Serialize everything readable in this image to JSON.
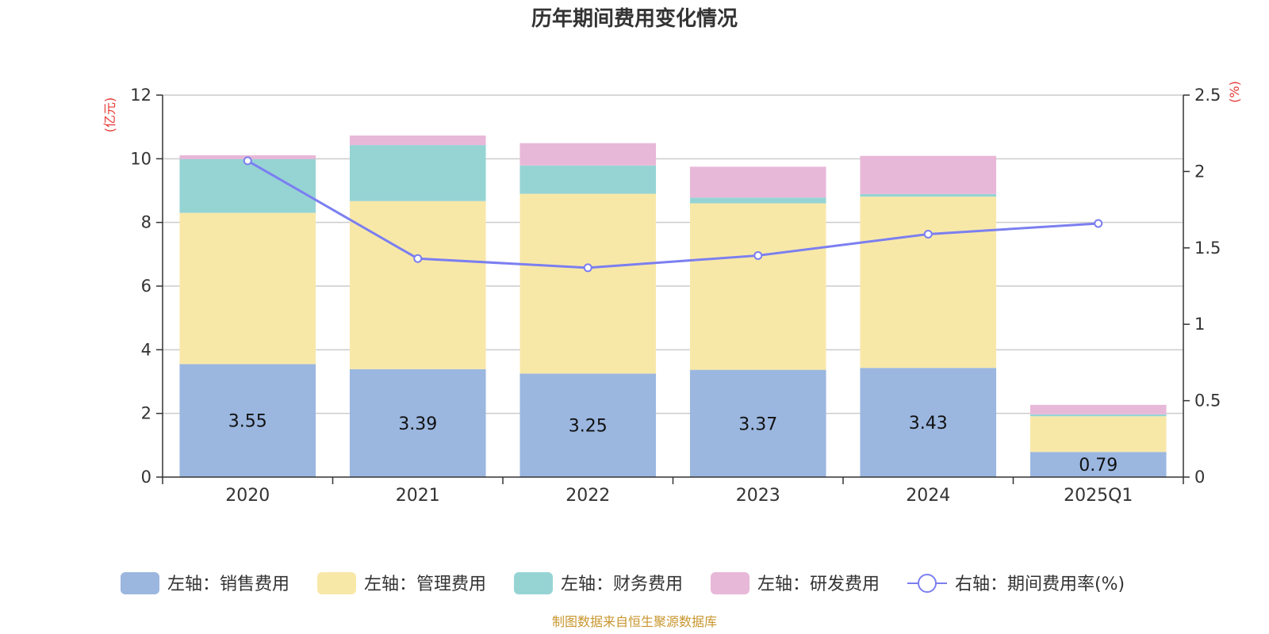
{
  "chart_data": {
    "type": "bar",
    "title": "历年期间费用变化情况",
    "categories": [
      "2020",
      "2021",
      "2022",
      "2023",
      "2024",
      "2025Q1"
    ],
    "left_axis": {
      "unit_label": "(亿元)",
      "ylim": [
        0,
        12
      ],
      "ticks": [
        "0",
        "2",
        "4",
        "6",
        "8",
        "10",
        "12"
      ]
    },
    "right_axis": {
      "unit_label": "(%)",
      "ylim": [
        0,
        2.5
      ],
      "ticks": [
        "0",
        "0.5",
        "1",
        "1.5",
        "2",
        "2.5"
      ]
    },
    "series": [
      {
        "name": "左轴：销售费用",
        "kind": "bar",
        "axis": "left",
        "color": "#9bb7e0",
        "values": [
          3.55,
          3.39,
          3.25,
          3.37,
          3.43,
          0.79
        ],
        "labels": [
          "3.55",
          "3.39",
          "3.25",
          "3.37",
          "3.43",
          "0.79"
        ]
      },
      {
        "name": "左轴：管理费用",
        "kind": "bar",
        "axis": "left",
        "color": "#f8e8a8",
        "values": [
          4.75,
          5.28,
          5.65,
          5.23,
          5.38,
          1.12
        ]
      },
      {
        "name": "左轴：财务费用",
        "kind": "bar",
        "axis": "left",
        "color": "#96d4d4",
        "values": [
          1.69,
          1.76,
          0.89,
          0.18,
          0.08,
          0.06
        ]
      },
      {
        "name": "左轴：研发费用",
        "kind": "bar",
        "axis": "left",
        "color": "#e8b8d8",
        "values": [
          0.12,
          0.3,
          0.7,
          0.97,
          1.2,
          0.3
        ]
      },
      {
        "name": "右轴：期间费用率(%)",
        "kind": "line",
        "axis": "right",
        "color": "#7b7ff0",
        "values": [
          2.07,
          1.43,
          1.37,
          1.45,
          1.59,
          1.66
        ]
      }
    ],
    "legend_position": "bottom",
    "grid": true,
    "source": "制图数据来自恒生聚源数据库"
  }
}
